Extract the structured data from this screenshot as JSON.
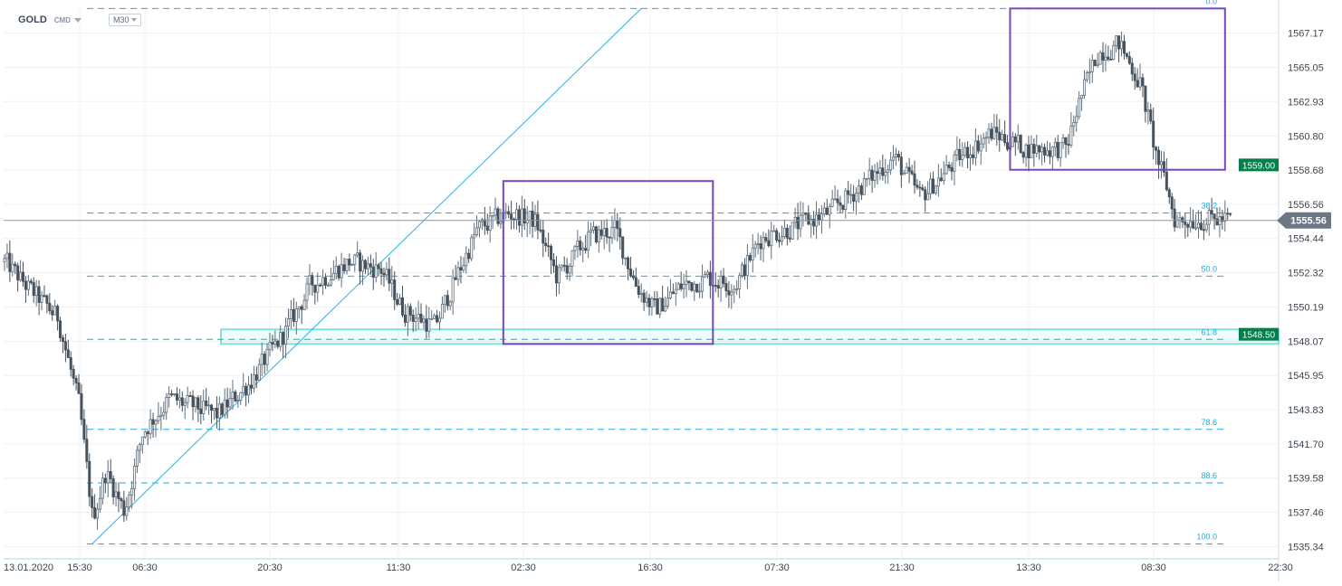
{
  "header": {
    "symbol": "GOLD",
    "exchange": "CMD",
    "timeframe": "M30"
  },
  "colors": {
    "bull": "#5f6f7d",
    "bear": "#46525c",
    "fib": "#27a9d6",
    "trend": "#2ab0e6",
    "box": "#7547c2",
    "zone": "#7fe3dd",
    "tag_green": "#037f49",
    "tag_gray": "#6b7785"
  },
  "chart_data": {
    "type": "candlestick",
    "title": "GOLD",
    "timeframe": "M30",
    "ylim": [
      1534.8,
      1569.0
    ],
    "y_ticks": [
      "1567.17",
      "1565.05",
      "1562.93",
      "1560.80",
      "1558.68",
      "1556.56",
      "1554.44",
      "1552.32",
      "1550.19",
      "1548.07",
      "1545.95",
      "1543.83",
      "1541.70",
      "1539.58",
      "1537.46",
      "1535.34"
    ],
    "x_ticks": [
      "13.01.2020",
      "15:30",
      "06:30",
      "20:30",
      "11:30",
      "02:30",
      "16:30",
      "07:30",
      "21:30",
      "13:30",
      "08:30",
      "22:30"
    ],
    "current_price": "1555.56",
    "fibonacci": {
      "high": 1568.7,
      "low": 1535.5,
      "levels": [
        {
          "label": "0.0",
          "ratio": 0.0
        },
        {
          "label": "38.2",
          "ratio": 0.382
        },
        {
          "label": "50.0",
          "ratio": 0.5
        },
        {
          "label": "61.8",
          "ratio": 0.618
        },
        {
          "label": "78.6",
          "ratio": 0.786
        },
        {
          "label": "88.6",
          "ratio": 0.886
        },
        {
          "label": "100.0",
          "ratio": 1.0
        }
      ]
    },
    "price_tags": [
      {
        "label": "1559.00",
        "value": 1559.0,
        "style": "green"
      },
      {
        "label": "1548.50",
        "value": 1548.5,
        "style": "green"
      }
    ],
    "zone": {
      "from": 1547.9,
      "to": 1548.8
    },
    "boxes": [
      {
        "name": "consolidation-box",
        "from_bar": 188,
        "to_bar": 267,
        "top": 1558.0,
        "bottom": 1547.9
      },
      {
        "name": "breakout-box",
        "from_bar": 379,
        "to_bar": 460,
        "top": 1568.7,
        "bottom": 1558.7
      }
    ],
    "trendline": {
      "from_bar": 33,
      "from_value": 1535.5,
      "to_bar": 240,
      "to_value": 1568.7
    },
    "bar_count": 463,
    "anchors": [
      [
        0,
        1553.0
      ],
      [
        8,
        1551.5
      ],
      [
        20,
        1549.5
      ],
      [
        28,
        1544.0
      ],
      [
        33,
        1537.0
      ],
      [
        38,
        1540.0
      ],
      [
        45,
        1537.5
      ],
      [
        52,
        1542.5
      ],
      [
        62,
        1544.5
      ],
      [
        80,
        1543.5
      ],
      [
        92,
        1545.5
      ],
      [
        105,
        1548.5
      ],
      [
        115,
        1551.5
      ],
      [
        130,
        1553.0
      ],
      [
        142,
        1552.5
      ],
      [
        150,
        1550.0
      ],
      [
        162,
        1549.0
      ],
      [
        170,
        1552.0
      ],
      [
        178,
        1555.0
      ],
      [
        190,
        1556.0
      ],
      [
        200,
        1555.5
      ],
      [
        208,
        1552.0
      ],
      [
        220,
        1554.5
      ],
      [
        230,
        1555.0
      ],
      [
        238,
        1551.5
      ],
      [
        245,
        1550.0
      ],
      [
        255,
        1551.5
      ],
      [
        265,
        1552.0
      ],
      [
        275,
        1551.5
      ],
      [
        285,
        1554.5
      ],
      [
        295,
        1555.0
      ],
      [
        310,
        1556.0
      ],
      [
        325,
        1558.0
      ],
      [
        335,
        1559.5
      ],
      [
        345,
        1557.0
      ],
      [
        360,
        1559.5
      ],
      [
        372,
        1561.0
      ],
      [
        385,
        1560.0
      ],
      [
        400,
        1560.0
      ],
      [
        405,
        1563.0
      ],
      [
        412,
        1566.0
      ],
      [
        420,
        1566.5
      ],
      [
        428,
        1564.0
      ],
      [
        434,
        1559.5
      ],
      [
        438,
        1557.5
      ],
      [
        441,
        1555.5
      ],
      [
        445,
        1555.6
      ]
    ]
  }
}
